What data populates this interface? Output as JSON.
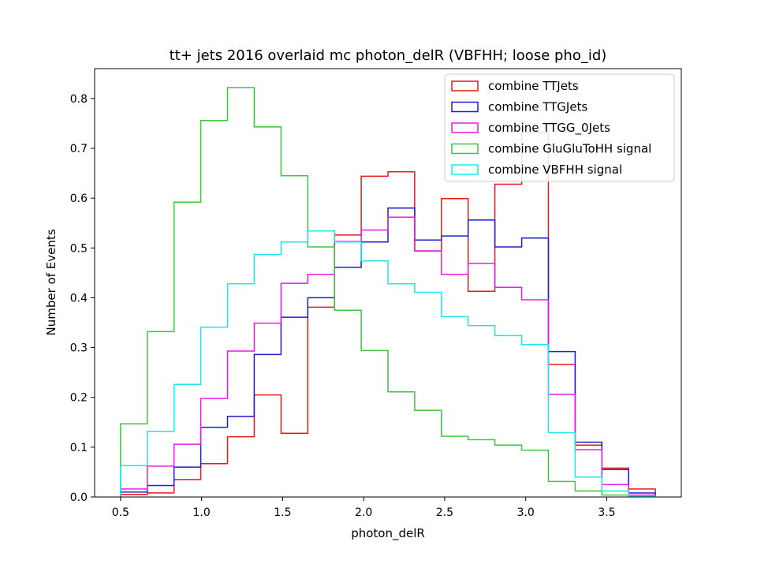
{
  "chart_data": {
    "type": "step-histogram",
    "title": "tt+ jets 2016 overlaid mc photon_delR (VBFHH; loose pho_id)",
    "xlabel": "photon_delR",
    "ylabel": "Number of Events",
    "xlim": [
      0.34,
      3.96
    ],
    "ylim": [
      0.0,
      0.86
    ],
    "xticks": [
      0.5,
      1.0,
      1.5,
      2.0,
      2.5,
      3.0,
      3.5
    ],
    "xtick_labels": [
      "0.5",
      "1.0",
      "1.5",
      "2.0",
      "2.5",
      "3.0",
      "3.5"
    ],
    "yticks": [
      0.0,
      0.1,
      0.2,
      0.3,
      0.4,
      0.5,
      0.6,
      0.7,
      0.8
    ],
    "ytick_labels": [
      "0.0",
      "0.1",
      "0.2",
      "0.3",
      "0.4",
      "0.5",
      "0.6",
      "0.7",
      "0.8"
    ],
    "legend_position": "top-right",
    "bin_edges": [
      0.5,
      0.665,
      0.83,
      0.995,
      1.16,
      1.325,
      1.49,
      1.655,
      1.82,
      1.985,
      2.15,
      2.315,
      2.48,
      2.645,
      2.81,
      2.975,
      3.14,
      3.305,
      3.47,
      3.635,
      3.8
    ],
    "series": [
      {
        "name": "combine TTJets",
        "color": "#e8191a",
        "values": [
          0.005,
          0.008,
          0.035,
          0.067,
          0.121,
          0.205,
          0.128,
          0.381,
          0.526,
          0.644,
          0.653,
          0.494,
          0.599,
          0.413,
          0.628,
          0.731,
          0.266,
          0.104,
          0.058,
          0.016
        ]
      },
      {
        "name": "combine TTGJets",
        "color": "#1f1fd0",
        "values": [
          0.01,
          0.023,
          0.06,
          0.14,
          0.162,
          0.286,
          0.361,
          0.4,
          0.461,
          0.512,
          0.58,
          0.516,
          0.524,
          0.556,
          0.502,
          0.52,
          0.292,
          0.11,
          0.055,
          0.008
        ]
      },
      {
        "name": "combine TTGG_0Jets",
        "color": "#e81ae8",
        "values": [
          0.016,
          0.062,
          0.106,
          0.198,
          0.293,
          0.349,
          0.429,
          0.447,
          0.513,
          0.536,
          0.562,
          0.494,
          0.447,
          0.469,
          0.421,
          0.396,
          0.206,
          0.095,
          0.025,
          0.004
        ]
      },
      {
        "name": "combine GluGluToHH signal",
        "color": "#3ec43e",
        "values": [
          0.147,
          0.332,
          0.592,
          0.756,
          0.822,
          0.743,
          0.645,
          0.502,
          0.375,
          0.294,
          0.211,
          0.174,
          0.122,
          0.115,
          0.104,
          0.094,
          0.031,
          0.012,
          0.004,
          0.001
        ]
      },
      {
        "name": "combine VBFHH signal",
        "color": "#1ae8e8",
        "values": [
          0.063,
          0.132,
          0.226,
          0.341,
          0.428,
          0.487,
          0.512,
          0.534,
          0.512,
          0.474,
          0.428,
          0.411,
          0.362,
          0.344,
          0.324,
          0.306,
          0.129,
          0.04,
          0.012,
          0.001
        ]
      }
    ]
  }
}
